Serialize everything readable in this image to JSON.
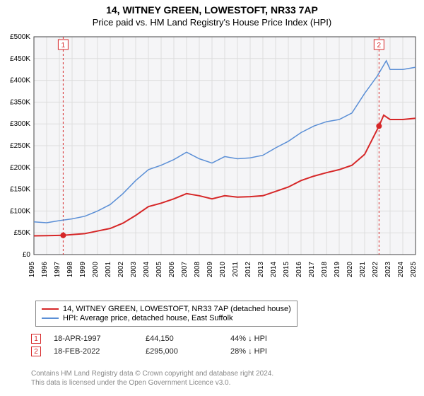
{
  "title_line1": "14, WITNEY GREEN, LOWESTOFT, NR33 7AP",
  "title_line2": "Price paid vs. HM Land Registry's House Price Index (HPI)",
  "chart": {
    "type": "line",
    "background_color": "#ffffff",
    "plot_background_color": "#f5f5f7",
    "grid_color": "#dddddd",
    "axis_color": "#444444",
    "label_fontsize": 10,
    "x_years": [
      1995,
      1996,
      1997,
      1998,
      1999,
      2000,
      2001,
      2002,
      2003,
      2004,
      2005,
      2006,
      2007,
      2008,
      2009,
      2010,
      2011,
      2012,
      2013,
      2014,
      2015,
      2016,
      2017,
      2018,
      2019,
      2020,
      2021,
      2022,
      2023,
      2024,
      2025
    ],
    "xlim": [
      1995,
      2025
    ],
    "y_ticks": [
      0,
      50000,
      100000,
      150000,
      200000,
      250000,
      300000,
      350000,
      400000,
      450000,
      500000
    ],
    "y_tick_labels": [
      "£0",
      "£50K",
      "£100K",
      "£150K",
      "£200K",
      "£250K",
      "£300K",
      "£350K",
      "£400K",
      "£450K",
      "£500K"
    ],
    "ylim": [
      0,
      500000
    ],
    "series": [
      {
        "name": "property",
        "color": "#d62728",
        "line_width": 2,
        "data": [
          [
            1995,
            43000
          ],
          [
            1996,
            43500
          ],
          [
            1997.3,
            44150
          ],
          [
            1998,
            46000
          ],
          [
            1999,
            48000
          ],
          [
            2000,
            54000
          ],
          [
            2001,
            60000
          ],
          [
            2002,
            72000
          ],
          [
            2003,
            90000
          ],
          [
            2004,
            110000
          ],
          [
            2005,
            118000
          ],
          [
            2006,
            128000
          ],
          [
            2007,
            140000
          ],
          [
            2008,
            135000
          ],
          [
            2009,
            128000
          ],
          [
            2010,
            135000
          ],
          [
            2011,
            132000
          ],
          [
            2012,
            133000
          ],
          [
            2013,
            135000
          ],
          [
            2014,
            145000
          ],
          [
            2015,
            155000
          ],
          [
            2016,
            170000
          ],
          [
            2017,
            180000
          ],
          [
            2018,
            188000
          ],
          [
            2019,
            195000
          ],
          [
            2020,
            205000
          ],
          [
            2021,
            230000
          ],
          [
            2022.13,
            295000
          ],
          [
            2022.5,
            320000
          ],
          [
            2023,
            310000
          ],
          [
            2024,
            310000
          ],
          [
            2025,
            313000
          ]
        ]
      },
      {
        "name": "hpi",
        "color": "#5b8fd6",
        "line_width": 1.5,
        "data": [
          [
            1995,
            75000
          ],
          [
            1996,
            73000
          ],
          [
            1997,
            78000
          ],
          [
            1998,
            82000
          ],
          [
            1999,
            88000
          ],
          [
            2000,
            100000
          ],
          [
            2001,
            115000
          ],
          [
            2002,
            140000
          ],
          [
            2003,
            170000
          ],
          [
            2004,
            195000
          ],
          [
            2005,
            205000
          ],
          [
            2006,
            218000
          ],
          [
            2007,
            235000
          ],
          [
            2008,
            220000
          ],
          [
            2009,
            210000
          ],
          [
            2010,
            225000
          ],
          [
            2011,
            220000
          ],
          [
            2012,
            222000
          ],
          [
            2013,
            228000
          ],
          [
            2014,
            245000
          ],
          [
            2015,
            260000
          ],
          [
            2016,
            280000
          ],
          [
            2017,
            295000
          ],
          [
            2018,
            305000
          ],
          [
            2019,
            310000
          ],
          [
            2020,
            325000
          ],
          [
            2021,
            370000
          ],
          [
            2022,
            410000
          ],
          [
            2022.7,
            445000
          ],
          [
            2023,
            425000
          ],
          [
            2024,
            425000
          ],
          [
            2025,
            430000
          ]
        ]
      }
    ],
    "sale_markers": [
      {
        "n": 1,
        "x": 1997.3,
        "y": 44150,
        "badge_color": "#d62728"
      },
      {
        "n": 2,
        "x": 2022.13,
        "y": 295000,
        "badge_color": "#d62728"
      }
    ],
    "vline_color": "#d62728",
    "vline_dash": "3,3"
  },
  "legend": {
    "items": [
      {
        "color": "#d62728",
        "label": "14, WITNEY GREEN, LOWESTOFT, NR33 7AP (detached house)"
      },
      {
        "color": "#5b8fd6",
        "label": "HPI: Average price, detached house, East Suffolk"
      }
    ]
  },
  "marker_rows": [
    {
      "n": "1",
      "border": "#d62728",
      "date": "18-APR-1997",
      "price": "£44,150",
      "pct": "44% ↓ HPI"
    },
    {
      "n": "2",
      "border": "#d62728",
      "date": "18-FEB-2022",
      "price": "£295,000",
      "pct": "28% ↓ HPI"
    }
  ],
  "license_line1": "Contains HM Land Registry data © Crown copyright and database right 2024.",
  "license_line2": "This data is licensed under the Open Government Licence v3.0."
}
